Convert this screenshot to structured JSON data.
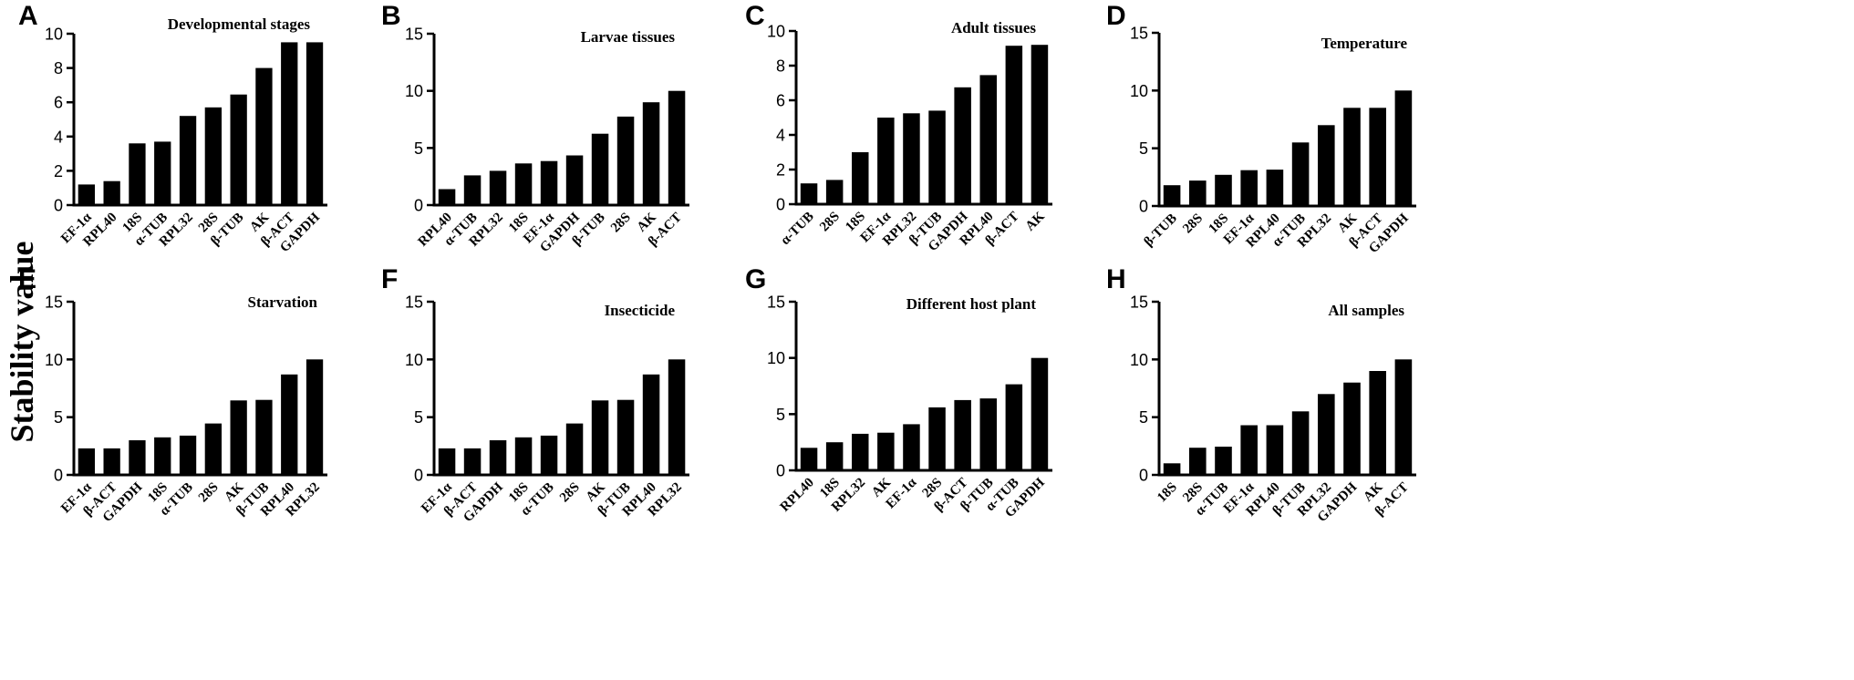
{
  "figure": {
    "ylabel": "Stability value",
    "text_color": "#000000",
    "bar_color": "#000000"
  },
  "chart_data": [
    {
      "letter": "A",
      "type": "bar",
      "title": "Developmental stages",
      "ylabel": "Stability value",
      "categories": [
        "EF-1α",
        "RPL40",
        "18S",
        "α-TUB",
        "RPL32",
        "28S",
        "β-TUB",
        "AK",
        "β-ACT",
        "GAPDH"
      ],
      "values": [
        1.2,
        1.4,
        3.6,
        3.7,
        5.2,
        5.7,
        6.45,
        8.0,
        9.5,
        9.5
      ],
      "ylim": [
        0,
        10
      ],
      "yticks": [
        0,
        2,
        4,
        6,
        8,
        10
      ]
    },
    {
      "letter": "B",
      "type": "bar",
      "title": "Larvae tissues",
      "ylabel": "Stability value",
      "categories": [
        "RPL40",
        "α-TUB",
        "RPL32",
        "18S",
        "EF-1α",
        "GAPDH",
        "β-TUB",
        "28S",
        "AK",
        "β-ACT"
      ],
      "values": [
        1.4,
        2.6,
        3.0,
        3.65,
        3.85,
        4.35,
        6.25,
        7.75,
        9.0,
        10.0
      ],
      "ylim": [
        0,
        15
      ],
      "yticks": [
        0,
        5,
        10,
        15
      ]
    },
    {
      "letter": "C",
      "type": "bar",
      "title": "Adult tissues",
      "ylabel": "Stability value",
      "categories": [
        "α-TUB",
        "28S",
        "18S",
        "EF-1α",
        "RPL32",
        "β-TUB",
        "GAPDH",
        "RPL40",
        "β-ACT",
        "AK"
      ],
      "values": [
        1.2,
        1.4,
        3.0,
        5.0,
        5.25,
        5.4,
        6.75,
        7.45,
        9.15,
        9.2
      ],
      "ylim": [
        0,
        10
      ],
      "yticks": [
        0,
        2,
        4,
        6,
        8,
        10
      ]
    },
    {
      "letter": "D",
      "type": "bar",
      "title": "Temperature",
      "ylabel": "Stability value",
      "categories": [
        "β-TUB",
        "28S",
        "18S",
        "EF-1α",
        "RPL40",
        "α-TUB",
        "RPL32",
        "AK",
        "β-ACT",
        "GAPDH"
      ],
      "values": [
        1.8,
        2.2,
        2.7,
        3.1,
        3.15,
        5.5,
        7.0,
        8.5,
        8.5,
        10.0
      ],
      "ylim": [
        0,
        15
      ],
      "yticks": [
        0,
        5,
        10,
        15
      ]
    },
    {
      "letter": "E",
      "type": "bar",
      "title": "Starvation",
      "ylabel": "Stability value",
      "categories": [
        "EF-1α",
        "β-ACT",
        "GAPDH",
        "18S",
        "α-TUB",
        "28S",
        "AK",
        "β-TUB",
        "RPL40",
        "RPL32"
      ],
      "values": [
        2.3,
        2.3,
        3.0,
        3.25,
        3.4,
        4.45,
        6.45,
        6.5,
        8.7,
        10.0
      ],
      "ylim": [
        0,
        15
      ],
      "yticks": [
        0,
        5,
        10,
        15
      ]
    },
    {
      "letter": "F",
      "type": "bar",
      "title": "Insecticide",
      "ylabel": "Stability value",
      "categories": [
        "EF-1α",
        "β-ACT",
        "GAPDH",
        "18S",
        "α-TUB",
        "28S",
        "AK",
        "β-TUB",
        "RPL40",
        "RPL32"
      ],
      "values": [
        2.3,
        2.3,
        3.0,
        3.25,
        3.4,
        4.45,
        6.45,
        6.5,
        8.7,
        10.0
      ],
      "ylim": [
        0,
        15
      ],
      "yticks": [
        0,
        5,
        10,
        15
      ]
    },
    {
      "letter": "G",
      "type": "bar",
      "title": "Different host plant",
      "ylabel": "Stability value",
      "categories": [
        "RPL40",
        "18S",
        "RPL32",
        "AK",
        "EF-1α",
        "28S",
        "β-ACT",
        "β-TUB",
        "α-TUB",
        "GAPDH"
      ],
      "values": [
        2.0,
        2.5,
        3.25,
        3.35,
        4.1,
        5.6,
        6.25,
        6.4,
        7.65,
        10.0
      ],
      "ylim": [
        0,
        15
      ],
      "yticks": [
        0,
        5,
        10,
        15
      ]
    },
    {
      "letter": "H",
      "type": "bar",
      "title": "All samples",
      "ylabel": "Stability value",
      "categories": [
        "18S",
        "28S",
        "α-TUB",
        "EF-1α",
        "RPL40",
        "β-TUB",
        "RPL32",
        "GAPDH",
        "AK",
        "β-ACT"
      ],
      "values": [
        1.0,
        2.35,
        2.45,
        4.3,
        4.3,
        5.5,
        7.0,
        8.0,
        9.0,
        10.0
      ],
      "ylim": [
        0,
        15
      ],
      "yticks": [
        0,
        5,
        10,
        15
      ]
    }
  ]
}
